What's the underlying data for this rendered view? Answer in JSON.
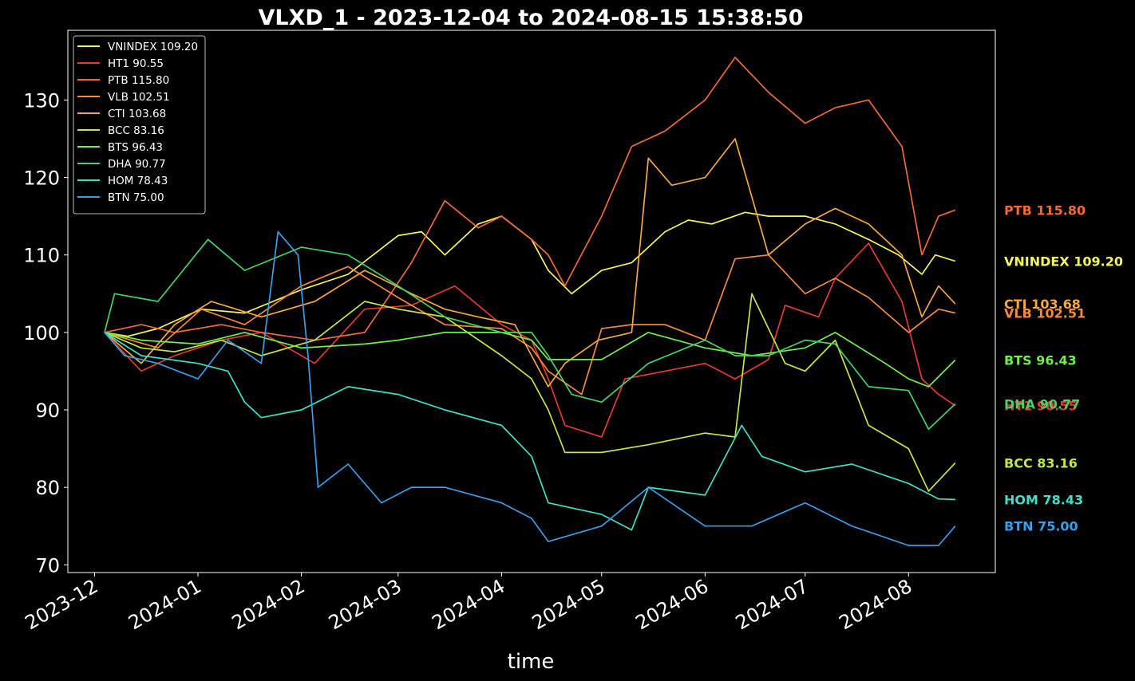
{
  "chart_data": {
    "type": "line",
    "title": "VLXD_1 - 2023-12-04 to 2024-08-15 15:38:50",
    "xlabel": "time",
    "ylabel": "",
    "xlim": [
      "2023-11-23",
      "2024-08-27"
    ],
    "ylim": [
      69,
      139
    ],
    "yticks": [
      70,
      80,
      90,
      100,
      110,
      120,
      130
    ],
    "xticks": [
      "2023-12",
      "2024-01",
      "2024-02",
      "2024-03",
      "2024-04",
      "2024-05",
      "2024-06",
      "2024-07",
      "2024-08"
    ],
    "xtick_dates": [
      "2023-12-01",
      "2024-01-01",
      "2024-02-01",
      "2024-03-01",
      "2024-04-01",
      "2024-05-01",
      "2024-06-01",
      "2024-07-01",
      "2024-08-01"
    ],
    "grid": false,
    "legend_position": "top-left",
    "series": [
      {
        "name": "VNINDEX 109.20",
        "end_label": "VNINDEX 109.20",
        "color": "#f5f55a",
        "x": [
          "2023-12-04",
          "2023-12-11",
          "2023-12-20",
          "2024-01-02",
          "2024-01-15",
          "2024-02-01",
          "2024-02-15",
          "2024-03-01",
          "2024-03-08",
          "2024-03-15",
          "2024-03-25",
          "2024-04-01",
          "2024-04-10",
          "2024-04-15",
          "2024-04-22",
          "2024-05-01",
          "2024-05-10",
          "2024-05-20",
          "2024-05-27",
          "2024-06-03",
          "2024-06-13",
          "2024-06-20",
          "2024-07-01",
          "2024-07-10",
          "2024-07-20",
          "2024-07-29",
          "2024-08-05",
          "2024-08-09",
          "2024-08-15"
        ],
        "y": [
          100,
          99.5,
          100.5,
          103,
          102.5,
          105.5,
          107.5,
          112.5,
          113,
          110,
          114,
          115,
          112,
          108,
          105,
          108,
          109,
          113,
          114.5,
          114,
          115.5,
          115,
          115,
          114,
          112,
          110,
          107.5,
          110,
          109.2
        ]
      },
      {
        "name": "HT1 90.55",
        "end_label": "HT1 90.55",
        "color": "#e83a30",
        "x": [
          "2023-12-04",
          "2023-12-15",
          "2023-12-25",
          "2024-01-08",
          "2024-01-20",
          "2024-02-05",
          "2024-02-20",
          "2024-03-05",
          "2024-03-18",
          "2024-04-01",
          "2024-04-10",
          "2024-04-15",
          "2024-04-20",
          "2024-05-01",
          "2024-05-08",
          "2024-05-20",
          "2024-06-01",
          "2024-06-10",
          "2024-06-20",
          "2024-06-25",
          "2024-07-05",
          "2024-07-10",
          "2024-07-20",
          "2024-07-30",
          "2024-08-05",
          "2024-08-10",
          "2024-08-15"
        ],
        "y": [
          100,
          95,
          97,
          99,
          100,
          96,
          103,
          103.5,
          106,
          101,
          99,
          94,
          88,
          86.5,
          94,
          95,
          96,
          94,
          96.5,
          103.5,
          102,
          107,
          111.5,
          104,
          94,
          92,
          90.55
        ]
      },
      {
        "name": "PTB 115.80",
        "end_label": "PTB 115.80",
        "color": "#f26a36",
        "x": [
          "2023-12-04",
          "2023-12-15",
          "2023-12-25",
          "2024-01-08",
          "2024-01-20",
          "2024-02-05",
          "2024-02-20",
          "2024-03-05",
          "2024-03-15",
          "2024-03-25",
          "2024-04-01",
          "2024-04-10",
          "2024-04-15",
          "2024-04-20",
          "2024-05-01",
          "2024-05-10",
          "2024-05-20",
          "2024-06-01",
          "2024-06-10",
          "2024-06-20",
          "2024-07-01",
          "2024-07-10",
          "2024-07-20",
          "2024-07-30",
          "2024-08-05",
          "2024-08-10",
          "2024-08-15"
        ],
        "y": [
          100,
          101,
          100,
          101,
          100,
          99,
          100,
          109,
          117,
          113.5,
          115,
          112,
          110,
          106,
          115,
          124,
          126,
          130,
          135.5,
          131,
          127,
          129,
          130,
          124,
          110,
          115,
          115.8
        ]
      },
      {
        "name": "VLB 102.51",
        "end_label": "VLB 102.51",
        "color": "#f58a3c",
        "x": [
          "2023-12-04",
          "2023-12-20",
          "2024-01-02",
          "2024-01-15",
          "2024-02-01",
          "2024-02-15",
          "2024-03-01",
          "2024-03-15",
          "2024-04-01",
          "2024-04-10",
          "2024-04-15",
          "2024-04-25",
          "2024-05-01",
          "2024-05-10",
          "2024-05-20",
          "2024-06-01",
          "2024-06-10",
          "2024-06-20",
          "2024-07-01",
          "2024-07-10",
          "2024-07-20",
          "2024-08-01",
          "2024-08-10",
          "2024-08-15"
        ],
        "y": [
          100,
          98,
          103,
          101,
          106,
          108.5,
          104.5,
          101,
          100.5,
          98,
          95,
          92,
          100.5,
          101,
          101,
          99,
          109.5,
          110,
          105,
          107,
          104.5,
          100,
          103,
          102.51
        ]
      },
      {
        "name": "CTI 103.68",
        "end_label": "CTI 103.68",
        "color": "#f5a83e",
        "x": [
          "2023-12-04",
          "2023-12-15",
          "2023-12-25",
          "2024-01-05",
          "2024-01-20",
          "2024-02-05",
          "2024-02-20",
          "2024-03-05",
          "2024-03-15",
          "2024-03-25",
          "2024-04-05",
          "2024-04-15",
          "2024-04-20",
          "2024-04-30",
          "2024-05-10",
          "2024-05-15",
          "2024-05-22",
          "2024-06-01",
          "2024-06-10",
          "2024-06-20",
          "2024-07-01",
          "2024-07-10",
          "2024-07-20",
          "2024-07-30",
          "2024-08-05",
          "2024-08-10",
          "2024-08-15"
        ],
        "y": [
          100,
          96,
          101,
          104,
          102,
          104,
          108,
          105,
          103,
          102,
          101,
          93,
          96,
          99,
          100,
          122.5,
          119,
          120,
          125,
          110,
          114,
          116,
          114,
          110,
          102,
          106,
          103.68
        ]
      },
      {
        "name": "BCC 83.16",
        "end_label": "BCC 83.16",
        "color": "#bfe84a",
        "x": [
          "2023-12-04",
          "2023-12-15",
          "2023-12-25",
          "2024-01-08",
          "2024-01-20",
          "2024-02-05",
          "2024-02-20",
          "2024-03-01",
          "2024-03-15",
          "2024-04-01",
          "2024-04-10",
          "2024-04-15",
          "2024-04-20",
          "2024-05-01",
          "2024-05-15",
          "2024-06-01",
          "2024-06-10",
          "2024-06-15",
          "2024-06-25",
          "2024-07-01",
          "2024-07-10",
          "2024-07-20",
          "2024-08-01",
          "2024-08-07",
          "2024-08-15"
        ],
        "y": [
          100,
          98,
          97.5,
          99,
          97,
          99,
          104,
          103,
          102,
          97,
          94,
          90,
          84.5,
          84.5,
          85.5,
          87,
          86.5,
          105,
          96,
          95,
          99,
          88,
          85,
          79.5,
          83.16
        ]
      },
      {
        "name": "BTS 96.43",
        "end_label": "BTS 96.43",
        "color": "#6ff04a",
        "x": [
          "2023-12-04",
          "2023-12-15",
          "2024-01-01",
          "2024-01-15",
          "2024-02-01",
          "2024-02-20",
          "2024-03-01",
          "2024-03-15",
          "2024-04-01",
          "2024-04-10",
          "2024-04-15",
          "2024-05-01",
          "2024-05-15",
          "2024-06-01",
          "2024-06-15",
          "2024-07-01",
          "2024-07-10",
          "2024-07-25",
          "2024-08-01",
          "2024-08-07",
          "2024-08-15"
        ],
        "y": [
          100,
          99,
          98.5,
          100,
          98,
          98.5,
          99,
          100,
          100,
          99,
          96.5,
          96.5,
          100,
          98,
          97,
          98,
          100,
          96,
          94,
          93,
          96.43
        ]
      },
      {
        "name": "DHA 90.77",
        "end_label": "DHA 90.77",
        "color": "#45d460",
        "x": [
          "2023-12-04",
          "2023-12-07",
          "2023-12-20",
          "2024-01-04",
          "2024-01-15",
          "2024-02-01",
          "2024-02-15",
          "2024-03-01",
          "2024-03-15",
          "2024-04-01",
          "2024-04-10",
          "2024-04-15",
          "2024-04-22",
          "2024-05-01",
          "2024-05-15",
          "2024-06-01",
          "2024-06-10",
          "2024-06-20",
          "2024-07-01",
          "2024-07-10",
          "2024-07-20",
          "2024-08-01",
          "2024-08-07",
          "2024-08-15"
        ],
        "y": [
          100,
          105,
          104,
          112,
          108,
          111,
          110,
          106,
          102,
          100,
          100,
          97,
          92,
          91,
          96,
          99,
          97,
          97,
          99,
          98.5,
          93,
          92.5,
          87.5,
          90.77
        ]
      },
      {
        "name": "HOM 78.43",
        "end_label": "HOM 78.43",
        "color": "#3ee0c8",
        "x": [
          "2023-12-04",
          "2023-12-15",
          "2024-01-01",
          "2024-01-10",
          "2024-01-15",
          "2024-01-20",
          "2024-02-01",
          "2024-02-15",
          "2024-03-01",
          "2024-03-15",
          "2024-04-01",
          "2024-04-10",
          "2024-04-15",
          "2024-05-01",
          "2024-05-10",
          "2024-05-15",
          "2024-06-01",
          "2024-06-12",
          "2024-06-18",
          "2024-07-01",
          "2024-07-15",
          "2024-08-01",
          "2024-08-10",
          "2024-08-15"
        ],
        "y": [
          100,
          97,
          96,
          95,
          91,
          89,
          90,
          93,
          92,
          90,
          88,
          84,
          78,
          76.5,
          74.5,
          80,
          79,
          88,
          84,
          82,
          83,
          80.5,
          78.5,
          78.43
        ]
      },
      {
        "name": "BTN 75.00",
        "end_label": "BTN 75.00",
        "color": "#3a9ee8",
        "x": [
          "2023-12-04",
          "2023-12-10",
          "2023-12-20",
          "2024-01-01",
          "2024-01-10",
          "2024-01-20",
          "2024-01-25",
          "2024-01-31",
          "2024-02-03",
          "2024-02-06",
          "2024-02-15",
          "2024-02-25",
          "2024-03-05",
          "2024-03-15",
          "2024-04-01",
          "2024-04-10",
          "2024-04-15",
          "2024-05-01",
          "2024-05-15",
          "2024-06-01",
          "2024-06-15",
          "2024-07-01",
          "2024-07-15",
          "2024-08-01",
          "2024-08-10",
          "2024-08-15"
        ],
        "y": [
          100,
          97,
          96,
          94,
          99,
          96,
          113,
          110,
          97,
          80,
          83,
          78,
          80,
          80,
          78,
          76,
          73,
          75,
          80,
          75,
          75,
          78,
          75,
          72.5,
          72.5,
          75
        ]
      }
    ]
  }
}
